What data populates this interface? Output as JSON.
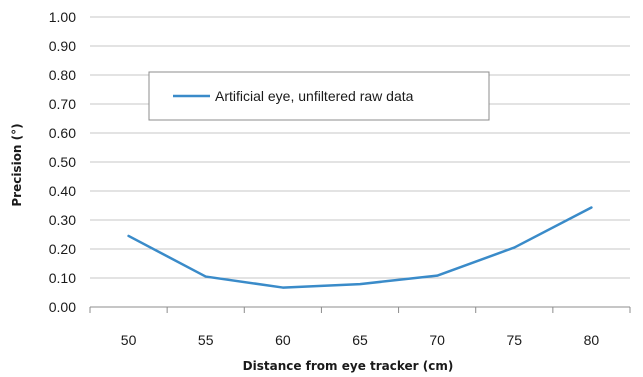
{
  "chart_data": {
    "type": "line",
    "xlabel": "Distance from eye tracker (cm)",
    "ylabel": "Precision (°)",
    "categories": [
      "50",
      "55",
      "60",
      "65",
      "70",
      "75",
      "80"
    ],
    "series": [
      {
        "name": "Artificial eye, unfiltered raw data",
        "values": [
          0.245,
          0.105,
          0.067,
          0.079,
          0.108,
          0.205,
          0.343
        ],
        "color": "#3a8bc9"
      }
    ],
    "ylim": [
      0,
      1
    ],
    "yticks": [
      "0.00",
      "0.10",
      "0.20",
      "0.30",
      "0.40",
      "0.50",
      "0.60",
      "0.70",
      "0.80",
      "0.90",
      "1.00"
    ],
    "grid": "horizontal",
    "legend_position": "top-left-inside"
  }
}
